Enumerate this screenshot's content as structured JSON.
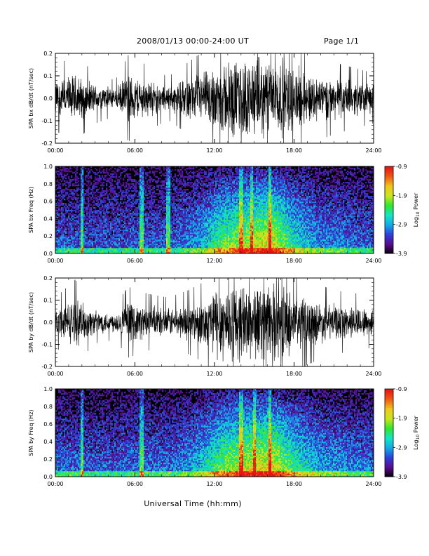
{
  "header": {
    "title": "2008/01/13  00:00-24:00 UT",
    "page": "Page 1/1"
  },
  "x_axis_title": "Universal Time (hh:mm)",
  "colorbar": {
    "label": "Log",
    "label_sub": "10",
    "label_suffix": " Power",
    "ticks": [
      "-0.9",
      "-1.9",
      "-2.9",
      "-3.9"
    ],
    "range": [
      -3.9,
      -0.9
    ],
    "colormap": [
      "#000000",
      "#5a0a8c",
      "#2f3fd8",
      "#14a8e6",
      "#14e6c8",
      "#2ee62e",
      "#c8e61e",
      "#f0c81e",
      "#f05a14",
      "#e61414"
    ]
  },
  "chart_data": [
    {
      "type": "line",
      "ylabel": "SPA bx dB/dt (nT/sec)",
      "x_range_hours": [
        0,
        24
      ],
      "x_ticks": [
        "00:00",
        "06:00",
        "12:00",
        "18:00",
        "24:00"
      ],
      "y_ticks": [
        "0.2",
        "0.1",
        "0.0",
        "-0.1",
        "-0.2"
      ],
      "ylim": [
        -0.2,
        0.2
      ],
      "envelope": [
        {
          "hour": 0,
          "amp": 0.09
        },
        {
          "hour": 1.5,
          "amp": 0.12
        },
        {
          "hour": 3,
          "amp": 0.07
        },
        {
          "hour": 4.5,
          "amp": 0.05
        },
        {
          "hour": 5.5,
          "amp": 0.12
        },
        {
          "hour": 7,
          "amp": 0.09
        },
        {
          "hour": 8.5,
          "amp": 0.06
        },
        {
          "hour": 10,
          "amp": 0.1
        },
        {
          "hour": 11.5,
          "amp": 0.14
        },
        {
          "hour": 13,
          "amp": 0.2
        },
        {
          "hour": 15,
          "amp": 0.2
        },
        {
          "hour": 17,
          "amp": 0.2
        },
        {
          "hour": 19,
          "amp": 0.13
        },
        {
          "hour": 21,
          "amp": 0.1
        },
        {
          "hour": 23,
          "amp": 0.08
        },
        {
          "hour": 24,
          "amp": 0.07
        }
      ]
    },
    {
      "type": "heatmap",
      "ylabel": "SPA bx Freq (Hz)",
      "x_range_hours": [
        0,
        24
      ],
      "x_ticks": [
        "00:00",
        "06:00",
        "12:00",
        "18:00",
        "24:00"
      ],
      "y_ticks": [
        "1.0",
        "0.8",
        "0.6",
        "0.4",
        "0.2",
        "0.0"
      ],
      "ylim": [
        0,
        1
      ],
      "zlim": [
        -3.9,
        -0.9
      ],
      "activity": [
        {
          "hour": 0,
          "level": 0.3
        },
        {
          "hour": 3,
          "level": 0.28
        },
        {
          "hour": 6,
          "level": 0.3
        },
        {
          "hour": 9,
          "level": 0.32
        },
        {
          "hour": 11,
          "level": 0.45
        },
        {
          "hour": 12.5,
          "level": 0.7
        },
        {
          "hour": 14.5,
          "level": 0.85
        },
        {
          "hour": 16.3,
          "level": 0.95
        },
        {
          "hour": 18,
          "level": 0.6
        },
        {
          "hour": 20,
          "level": 0.4
        },
        {
          "hour": 24,
          "level": 0.3
        }
      ],
      "bursts_hours": [
        2.0,
        6.5,
        8.5,
        14.0,
        14.8,
        16.2
      ]
    },
    {
      "type": "line",
      "ylabel": "SPA by dB/dt (nT/sec)",
      "x_range_hours": [
        0,
        24
      ],
      "x_ticks": [
        "00:00",
        "06:00",
        "12:00",
        "18:00",
        "24:00"
      ],
      "y_ticks": [
        "0.2",
        "0.1",
        "0.0",
        "-0.1",
        "-0.2"
      ],
      "ylim": [
        -0.2,
        0.2
      ],
      "envelope": [
        {
          "hour": 0,
          "amp": 0.07
        },
        {
          "hour": 1.5,
          "amp": 0.12
        },
        {
          "hour": 3,
          "amp": 0.06
        },
        {
          "hour": 4.5,
          "amp": 0.05
        },
        {
          "hour": 5.5,
          "amp": 0.1
        },
        {
          "hour": 7,
          "amp": 0.08
        },
        {
          "hour": 8.5,
          "amp": 0.07
        },
        {
          "hour": 10,
          "amp": 0.09
        },
        {
          "hour": 11.5,
          "amp": 0.12
        },
        {
          "hour": 12,
          "amp": 0.2
        },
        {
          "hour": 15,
          "amp": 0.2
        },
        {
          "hour": 17,
          "amp": 0.19
        },
        {
          "hour": 19,
          "amp": 0.12
        },
        {
          "hour": 21,
          "amp": 0.09
        },
        {
          "hour": 23,
          "amp": 0.08
        },
        {
          "hour": 24,
          "amp": 0.07
        }
      ]
    },
    {
      "type": "heatmap",
      "ylabel": "SPA by Freq (Hz)",
      "x_range_hours": [
        0,
        24
      ],
      "x_ticks": [
        "00:00",
        "06:00",
        "12:00",
        "18:00",
        "24:00"
      ],
      "y_ticks": [
        "1.0",
        "0.8",
        "0.6",
        "0.4",
        "0.2",
        "0.0"
      ],
      "ylim": [
        0,
        1
      ],
      "zlim": [
        -3.9,
        -0.9
      ],
      "activity": [
        {
          "hour": 0,
          "level": 0.35
        },
        {
          "hour": 3,
          "level": 0.3
        },
        {
          "hour": 6,
          "level": 0.33
        },
        {
          "hour": 9,
          "level": 0.35
        },
        {
          "hour": 11,
          "level": 0.5
        },
        {
          "hour": 12.5,
          "level": 0.75
        },
        {
          "hour": 14.5,
          "level": 0.9
        },
        {
          "hour": 16.3,
          "level": 0.95
        },
        {
          "hour": 18,
          "level": 0.65
        },
        {
          "hour": 20,
          "level": 0.45
        },
        {
          "hour": 24,
          "level": 0.35
        }
      ],
      "bursts_hours": [
        2.0,
        6.5,
        14.0,
        15.0,
        16.2
      ]
    }
  ]
}
